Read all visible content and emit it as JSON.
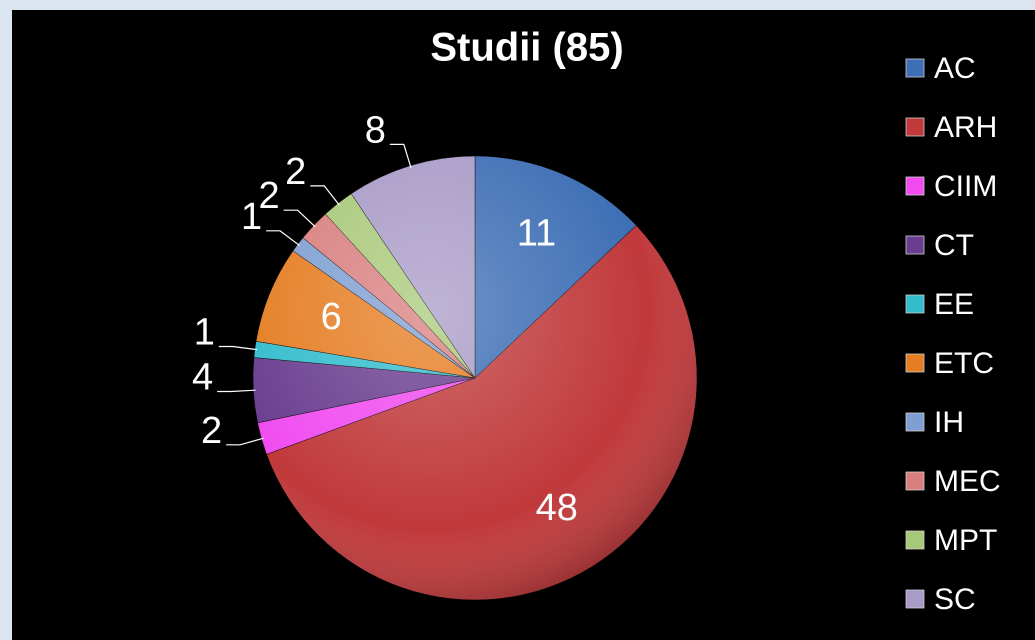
{
  "chart_data": {
    "type": "pie",
    "title": "Studii (85)",
    "categories": [
      "AC",
      "ARH",
      "CIIM",
      "CT",
      "EE",
      "ETC",
      "IH",
      "MEC",
      "MPT",
      "SC"
    ],
    "values": [
      11,
      48,
      2,
      4,
      1,
      6,
      1,
      2,
      2,
      8
    ],
    "colors": [
      "#3e6fb5",
      "#c0393b",
      "#f04cf0",
      "#6a3d8f",
      "#33bccd",
      "#e57d22",
      "#7f9fd2",
      "#d97f7f",
      "#a9c97a",
      "#a99bc7"
    ],
    "label_positions": [
      "inside",
      "inside",
      "outside",
      "outside",
      "outside",
      "inside",
      "outside",
      "outside",
      "outside",
      "outside"
    ],
    "legend": "right"
  }
}
